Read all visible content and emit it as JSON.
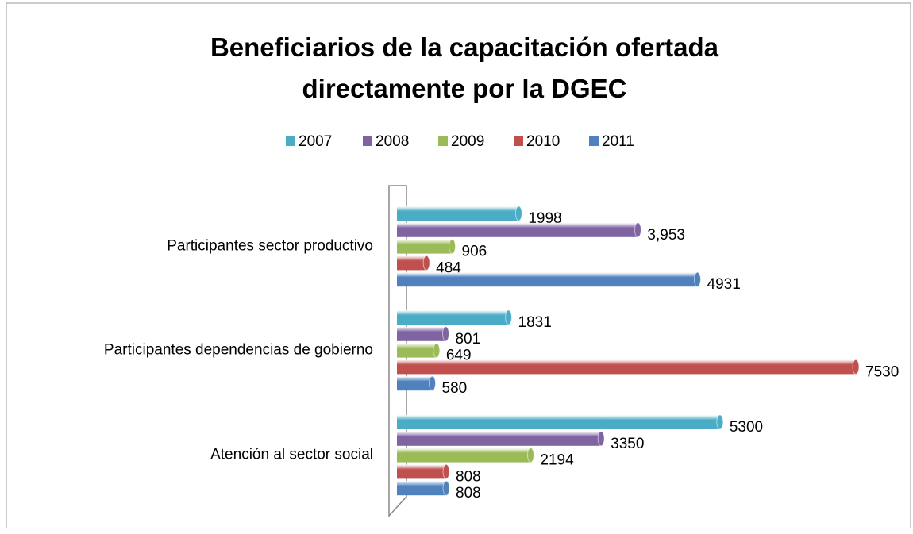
{
  "chart_data": {
    "type": "bar",
    "orientation": "horizontal",
    "title": "Beneficiarios de la capacitación ofertada directamente por la DGEC",
    "categories": [
      "Participantes sector productivo",
      "Participantes dependencias de gobierno",
      "Atención al sector social"
    ],
    "series": [
      {
        "name": "2007",
        "color": "#4bacc6",
        "values": [
          1998,
          1831,
          5300
        ]
      },
      {
        "name": "2008",
        "color": "#8064a2",
        "values": [
          3953,
          801,
          3350
        ],
        "value_labels": [
          "3,953",
          "801",
          "3350"
        ]
      },
      {
        "name": "2009",
        "color": "#9bbb59",
        "values": [
          906,
          649,
          2194
        ]
      },
      {
        "name": "2010",
        "color": "#c0504d",
        "values": [
          484,
          7530,
          808
        ]
      },
      {
        "name": "2011",
        "color": "#4f81bd",
        "values": [
          4931,
          580,
          808
        ]
      }
    ],
    "legend": "top"
  }
}
